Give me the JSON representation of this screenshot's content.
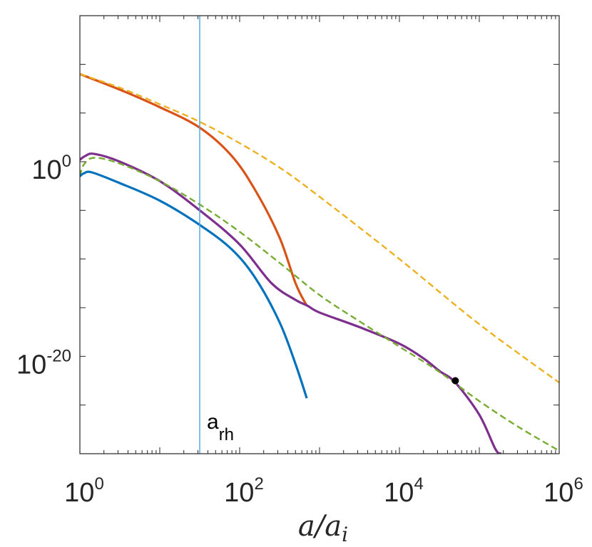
{
  "chart_data": {
    "type": "line",
    "title": "",
    "xlabel": "a/a_i",
    "xlabel_parts": {
      "base": "a/a",
      "sub": "i"
    },
    "ylabel": "",
    "xscale": "log",
    "yscale": "log",
    "xlim_log10": [
      0,
      6
    ],
    "ylim_log10": [
      -30,
      15
    ],
    "grid": false,
    "legend": "none",
    "x_ticks": [
      {
        "base": "10",
        "exp": "0",
        "log10": 0
      },
      {
        "base": "10",
        "exp": "2",
        "log10": 2
      },
      {
        "base": "10",
        "exp": "4",
        "log10": 4
      },
      {
        "base": "10",
        "exp": "6",
        "log10": 6
      }
    ],
    "y_ticks": [
      {
        "base": "10",
        "exp": "0",
        "log10": 0
      },
      {
        "base": "10",
        "exp": "-20",
        "log10": -20
      }
    ],
    "series": [
      {
        "color": "#d95319",
        "style": "solid",
        "width": 3.2,
        "points": [
          [
            0.0,
            9.0
          ],
          [
            0.5,
            7.4
          ],
          [
            1.0,
            5.6
          ],
          [
            1.5,
            3.5
          ],
          [
            1.9,
            0.6
          ],
          [
            2.2,
            -3.0
          ],
          [
            2.5,
            -7.8
          ],
          [
            2.7,
            -12.5
          ],
          [
            2.84,
            -14.8
          ]
        ]
      },
      {
        "color": "#edb120",
        "style": "dashed",
        "width": 2.4,
        "points": [
          [
            0.0,
            9.0
          ],
          [
            0.5,
            7.6
          ],
          [
            1.0,
            5.9
          ],
          [
            1.5,
            4.1
          ],
          [
            2.0,
            1.9
          ],
          [
            2.5,
            -0.6
          ],
          [
            3.0,
            -3.6
          ],
          [
            4.0,
            -10.0
          ],
          [
            5.0,
            -16.7
          ],
          [
            6.0,
            -22.7
          ]
        ]
      },
      {
        "color": "#7e2f8e",
        "style": "solid",
        "width": 3.2,
        "points": [
          [
            0.0,
            0.2
          ],
          [
            0.07,
            0.6
          ],
          [
            0.18,
            0.8
          ],
          [
            0.5,
            0.0
          ],
          [
            1.0,
            -2.0
          ],
          [
            1.5,
            -5.0
          ],
          [
            2.0,
            -8.5
          ],
          [
            2.4,
            -12.5
          ],
          [
            2.7,
            -14.2
          ],
          [
            2.85,
            -14.8
          ],
          [
            3.0,
            -15.5
          ],
          [
            3.5,
            -17.0
          ],
          [
            4.0,
            -18.7
          ],
          [
            4.3,
            -20.2
          ],
          [
            4.5,
            -21.5
          ],
          [
            4.7,
            -22.7
          ],
          [
            5.0,
            -26.0
          ],
          [
            5.2,
            -29.5
          ],
          [
            5.27,
            -30.0
          ]
        ]
      },
      {
        "color": "#77ac30",
        "style": "dashed",
        "width": 2.4,
        "points": [
          [
            0.0,
            -1.5
          ],
          [
            0.05,
            -0.3
          ],
          [
            0.18,
            0.4
          ],
          [
            0.5,
            -0.2
          ],
          [
            1.0,
            -2.0
          ],
          [
            1.5,
            -4.4
          ],
          [
            2.0,
            -7.2
          ],
          [
            2.5,
            -10.4
          ],
          [
            3.0,
            -13.7
          ],
          [
            3.5,
            -16.4
          ],
          [
            4.0,
            -19.0
          ],
          [
            4.5,
            -21.6
          ],
          [
            5.0,
            -24.6
          ],
          [
            5.5,
            -27.3
          ],
          [
            6.0,
            -29.7
          ]
        ]
      },
      {
        "color": "#0072bd",
        "style": "solid",
        "width": 3.2,
        "points": [
          [
            0.0,
            -1.5
          ],
          [
            0.05,
            -1.2
          ],
          [
            0.15,
            -1.1
          ],
          [
            0.5,
            -2.2
          ],
          [
            1.0,
            -4.0
          ],
          [
            1.5,
            -6.5
          ],
          [
            1.9,
            -9.0
          ],
          [
            2.2,
            -12.0
          ],
          [
            2.5,
            -16.5
          ],
          [
            2.7,
            -20.8
          ],
          [
            2.84,
            -24.3
          ]
        ]
      }
    ],
    "markers": [
      {
        "x_log10": 4.7,
        "y_log10": -22.5,
        "color": "#000000"
      }
    ],
    "reference_lines": [
      {
        "orientation": "vertical",
        "x_log10": 1.5,
        "color": "#4da3e0",
        "label_base": "a",
        "label_sub": "rh"
      }
    ]
  }
}
